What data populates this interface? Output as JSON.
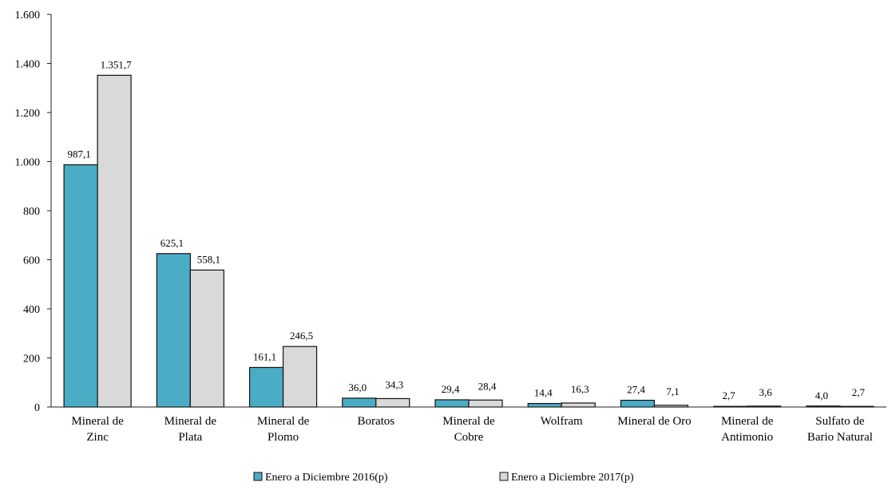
{
  "chart_data": {
    "type": "bar",
    "categories": [
      [
        "Mineral de",
        "Zinc"
      ],
      [
        "Mineral de",
        "Plata"
      ],
      [
        "Mineral de",
        "Plomo"
      ],
      [
        "Boratos"
      ],
      [
        "Mineral de",
        "Cobre"
      ],
      [
        "Wolfram"
      ],
      [
        "Mineral de Oro"
      ],
      [
        "Mineral de",
        "Antimonio"
      ],
      [
        "Sulfato de",
        "Bario Natural"
      ]
    ],
    "series": [
      {
        "name": "Enero a Diciembre 2016(p)",
        "color": "#4bacc6",
        "values": [
          987.1,
          625.1,
          161.1,
          36.0,
          29.4,
          14.4,
          27.4,
          2.7,
          4.0
        ],
        "labels": [
          "987,1",
          "625,1",
          "161,1",
          "36,0",
          "29,4",
          "14,4",
          "27,4",
          "2,7",
          "4,0"
        ]
      },
      {
        "name": "Enero a Diciembre 2017(p)",
        "color": "#d9d9d9",
        "values": [
          1351.7,
          558.1,
          246.5,
          34.3,
          28.4,
          16.3,
          7.1,
          3.6,
          2.7
        ],
        "labels": [
          "1.351,7",
          "558,1",
          "246,5",
          "34,3",
          "28,4",
          "16,3",
          "7,1",
          "3,6",
          "2,7"
        ]
      }
    ],
    "ylim": [
      0,
      1600
    ],
    "yticks": [
      0,
      200,
      400,
      600,
      800,
      1000,
      1200,
      1400,
      1600
    ],
    "ytick_labels": [
      "0",
      "200",
      "400",
      "600",
      "800",
      "1.000",
      "1.200",
      "1.400",
      "1.600"
    ],
    "grid": false,
    "legend_position": "bottom-center"
  }
}
